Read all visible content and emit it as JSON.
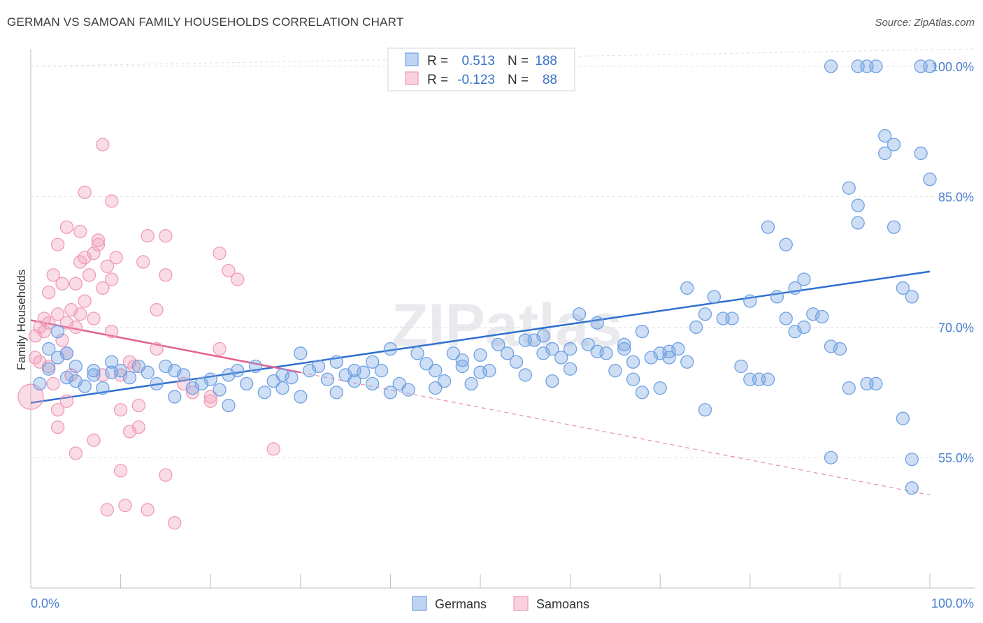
{
  "title": "GERMAN VS SAMOAN FAMILY HOUSEHOLDS CORRELATION CHART",
  "source": "Source: ZipAtlas.com",
  "chart_data": {
    "type": "scatter",
    "title": "GERMAN VS SAMOAN FAMILY HOUSEHOLDS CORRELATION CHART",
    "xlabel": "",
    "ylabel": "Family Households",
    "xlim": [
      0,
      100
    ],
    "ylim": [
      40,
      102
    ],
    "x_tick_labels": [
      "0.0%",
      "100.0%"
    ],
    "y_ticks": [
      55,
      70,
      85,
      100
    ],
    "y_tick_labels": [
      "55.0%",
      "70.0%",
      "85.0%",
      "100.0%"
    ],
    "grid": true,
    "legend_position": "top-center",
    "stats": [
      {
        "series": "Germans",
        "r_label": "R =",
        "r": "0.513",
        "n_label": "N =",
        "n": "188"
      },
      {
        "series": "Samoans",
        "r_label": "R =",
        "r": "-0.123",
        "n_label": "N =",
        "n": "88"
      }
    ],
    "series": [
      {
        "name": "Germans",
        "color": "#6fa1e3",
        "trend": {
          "x": [
            0,
            100
          ],
          "y": [
            61.3,
            76.4
          ]
        },
        "points": [
          [
            1,
            63.5
          ],
          [
            2,
            67.5
          ],
          [
            2,
            65.2
          ],
          [
            3,
            66.5
          ],
          [
            3,
            69.5
          ],
          [
            4,
            64.2
          ],
          [
            4,
            67
          ],
          [
            5,
            63.8
          ],
          [
            5,
            65.5
          ],
          [
            6,
            63.2
          ],
          [
            7,
            64.5
          ],
          [
            7,
            65
          ],
          [
            8,
            63
          ],
          [
            9,
            64.8
          ],
          [
            9,
            66
          ],
          [
            10,
            65
          ],
          [
            11,
            64.2
          ],
          [
            12,
            65.5
          ],
          [
            13,
            64.8
          ],
          [
            14,
            63.5
          ],
          [
            15,
            65.5
          ],
          [
            16,
            62
          ],
          [
            16,
            65
          ],
          [
            17,
            64.5
          ],
          [
            18,
            63
          ],
          [
            19,
            63.5
          ],
          [
            20,
            64
          ],
          [
            21,
            62.8
          ],
          [
            22,
            61
          ],
          [
            22,
            64.5
          ],
          [
            23,
            65
          ],
          [
            24,
            63.5
          ],
          [
            25,
            65.5
          ],
          [
            26,
            62.5
          ],
          [
            27,
            63.8
          ],
          [
            28,
            64.5
          ],
          [
            28,
            63
          ],
          [
            29,
            64.2
          ],
          [
            30,
            62
          ],
          [
            30,
            67
          ],
          [
            31,
            65
          ],
          [
            32,
            65.5
          ],
          [
            33,
            64
          ],
          [
            34,
            62.5
          ],
          [
            34,
            66
          ],
          [
            35,
            64.5
          ],
          [
            36,
            63.8
          ],
          [
            36,
            65
          ],
          [
            37,
            64.8
          ],
          [
            38,
            63.5
          ],
          [
            38,
            66
          ],
          [
            39,
            65
          ],
          [
            40,
            62.5
          ],
          [
            40,
            67.5
          ],
          [
            41,
            63.5
          ],
          [
            42,
            62.8
          ],
          [
            43,
            67
          ],
          [
            44,
            65.8
          ],
          [
            45,
            65
          ],
          [
            45,
            63
          ],
          [
            46,
            63.8
          ],
          [
            47,
            67
          ],
          [
            48,
            65.5
          ],
          [
            48,
            66.2
          ],
          [
            49,
            63.5
          ],
          [
            50,
            64.8
          ],
          [
            50,
            66.8
          ],
          [
            51,
            65
          ],
          [
            52,
            68
          ],
          [
            53,
            67
          ],
          [
            54,
            66
          ],
          [
            55,
            64.5
          ],
          [
            55,
            68.5
          ],
          [
            56,
            68.5
          ],
          [
            57,
            67
          ],
          [
            57,
            69
          ],
          [
            58,
            63.8
          ],
          [
            58,
            67.5
          ],
          [
            59,
            66.5
          ],
          [
            60,
            67.5
          ],
          [
            60,
            65.2
          ],
          [
            61,
            71.5
          ],
          [
            62,
            68
          ],
          [
            63,
            67.2
          ],
          [
            63,
            70.5
          ],
          [
            64,
            67
          ],
          [
            65,
            65
          ],
          [
            66,
            68
          ],
          [
            66,
            67.5
          ],
          [
            67,
            64
          ],
          [
            67,
            66
          ],
          [
            68,
            69.5
          ],
          [
            68,
            62.5
          ],
          [
            69,
            66.5
          ],
          [
            70,
            67
          ],
          [
            70,
            63
          ],
          [
            71,
            66.5
          ],
          [
            71,
            67.2
          ],
          [
            72,
            67.5
          ],
          [
            73,
            66
          ],
          [
            73,
            74.5
          ],
          [
            74,
            70
          ],
          [
            75,
            71.5
          ],
          [
            75,
            60.5
          ],
          [
            76,
            73.5
          ],
          [
            77,
            71
          ],
          [
            78,
            71
          ],
          [
            79,
            65.5
          ],
          [
            80,
            73
          ],
          [
            80,
            64
          ],
          [
            81,
            64
          ],
          [
            82,
            81.5
          ],
          [
            82,
            64
          ],
          [
            83,
            73.5
          ],
          [
            84,
            79.5
          ],
          [
            84,
            71
          ],
          [
            85,
            69.5
          ],
          [
            85,
            74.5
          ],
          [
            86,
            75.5
          ],
          [
            86,
            70
          ],
          [
            87,
            71.5
          ],
          [
            88,
            71.2
          ],
          [
            89,
            67.8
          ],
          [
            89,
            55
          ],
          [
            90,
            67.5
          ],
          [
            91,
            86
          ],
          [
            91,
            63
          ],
          [
            92,
            82
          ],
          [
            92,
            84
          ],
          [
            93,
            63.5
          ],
          [
            94,
            63.5
          ],
          [
            95,
            92
          ],
          [
            95,
            90
          ],
          [
            96,
            91
          ],
          [
            96,
            81.5
          ],
          [
            97,
            59.5
          ],
          [
            98,
            54.8
          ],
          [
            98,
            51.5
          ],
          [
            99,
            100
          ],
          [
            100,
            100
          ],
          [
            89,
            100
          ],
          [
            92,
            100
          ],
          [
            93,
            100
          ],
          [
            94,
            100
          ],
          [
            97,
            74.5
          ],
          [
            98,
            73.5
          ],
          [
            99,
            90
          ],
          [
            100,
            87
          ]
        ]
      },
      {
        "name": "Samoans",
        "color": "#f19bb6",
        "trend": {
          "x": [
            0,
            30
          ],
          "y": [
            70.8,
            64.8
          ]
        },
        "trend_dashed": {
          "x": [
            30,
            100
          ],
          "y": [
            64.8,
            50.7
          ]
        },
        "points": [
          [
            0,
            62
          ],
          [
            0.5,
            66.5
          ],
          [
            0.5,
            69
          ],
          [
            1,
            70
          ],
          [
            1,
            66
          ],
          [
            1.5,
            69.5
          ],
          [
            1.5,
            71
          ],
          [
            2,
            65.5
          ],
          [
            2,
            70.5
          ],
          [
            2,
            74
          ],
          [
            2.5,
            76
          ],
          [
            2.5,
            63.5
          ],
          [
            3,
            79.5
          ],
          [
            3,
            71.5
          ],
          [
            3,
            60.5
          ],
          [
            3,
            58.5
          ],
          [
            3.5,
            75
          ],
          [
            3.5,
            68.5
          ],
          [
            4,
            81.5
          ],
          [
            4,
            70.5
          ],
          [
            4,
            67
          ],
          [
            4,
            61.5
          ],
          [
            4.5,
            72
          ],
          [
            4.5,
            64.5
          ],
          [
            5,
            75
          ],
          [
            5,
            70
          ],
          [
            5,
            55.5
          ],
          [
            5.5,
            77.5
          ],
          [
            5.5,
            71.5
          ],
          [
            5.5,
            81
          ],
          [
            6,
            85.5
          ],
          [
            6,
            73
          ],
          [
            6,
            78
          ],
          [
            6.5,
            76
          ],
          [
            7,
            71
          ],
          [
            7,
            78.5
          ],
          [
            7,
            57
          ],
          [
            7.5,
            79.5
          ],
          [
            7.5,
            80
          ],
          [
            8,
            91
          ],
          [
            8,
            74.5
          ],
          [
            8,
            64.5
          ],
          [
            8.5,
            49
          ],
          [
            8.5,
            77
          ],
          [
            9,
            69.5
          ],
          [
            9,
            84.5
          ],
          [
            9,
            75.5
          ],
          [
            9.5,
            78
          ],
          [
            10,
            60.5
          ],
          [
            10,
            53.5
          ],
          [
            10,
            64.5
          ],
          [
            10.5,
            49.5
          ],
          [
            11,
            58
          ],
          [
            11,
            66
          ],
          [
            11.5,
            65.5
          ],
          [
            12,
            61
          ],
          [
            12,
            58.5
          ],
          [
            12.5,
            77.5
          ],
          [
            13,
            49
          ],
          [
            13,
            80.5
          ],
          [
            14,
            67.5
          ],
          [
            14,
            72
          ],
          [
            15,
            76
          ],
          [
            15,
            80.5
          ],
          [
            15,
            53
          ],
          [
            16,
            47.5
          ],
          [
            17,
            63.5
          ],
          [
            18,
            62.5
          ],
          [
            20,
            61.5
          ],
          [
            20,
            62
          ],
          [
            21,
            67.5
          ],
          [
            21,
            78.5
          ],
          [
            22,
            76.5
          ],
          [
            23,
            75.5
          ],
          [
            27,
            56
          ]
        ]
      }
    ]
  },
  "legend": {
    "items": [
      {
        "name": "Germans",
        "color": "#6fa1e3"
      },
      {
        "name": "Samoans",
        "color": "#f19bb6"
      }
    ]
  },
  "watermark": "ZIPatlas"
}
